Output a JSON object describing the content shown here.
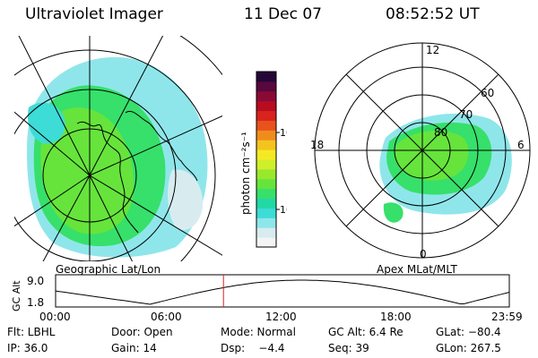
{
  "header": {
    "title": "Ultraviolet Imager",
    "date": "11 Dec 07",
    "time": "08:52:52 UT"
  },
  "colorbar": {
    "label": "photon cm⁻²s⁻¹",
    "tick_100": "100",
    "tick_10": "10",
    "colors": [
      "#f4f4f4",
      "#d8ecf0",
      "#8fe6ea",
      "#3ddcd6",
      "#22d8a6",
      "#36e06a",
      "#66e43c",
      "#9ae82e",
      "#d0ee2a",
      "#f4ea24",
      "#f4c41e",
      "#f08c1c",
      "#e8521c",
      "#d8241c",
      "#b80c20",
      "#8a0a36",
      "#58083c",
      "#240638"
    ]
  },
  "geo_map": {
    "label": "Geographic Lat/Lon"
  },
  "polar_map": {
    "label": "Apex MLat/MLT",
    "mlt_labels": {
      "top": "12",
      "right": "6",
      "left": "18",
      "bottom": "0"
    },
    "lat_labels": [
      "60",
      "70",
      "80"
    ]
  },
  "alt_plot": {
    "ylabel": "GC Alt",
    "y_ticks": [
      "9.0",
      "1.8"
    ],
    "x_ticks": [
      "00:00",
      "06:00",
      "12:00",
      "18:00",
      "23:59"
    ],
    "current_time_hours": 8.88,
    "line_color": "#e02020"
  },
  "status": {
    "filter": "Flt: LBHL",
    "door": "Door: Open",
    "mode": "Mode: Normal",
    "gc_alt": "GC Alt: 6.4 Re",
    "glat": "GLat: −80.4",
    "ip": "IP: 36.0",
    "gain": "Gain: 14",
    "dsp": "Dsp:    −4.4",
    "seq": "Seq: 39",
    "glon": "GLon: 267.5"
  }
}
